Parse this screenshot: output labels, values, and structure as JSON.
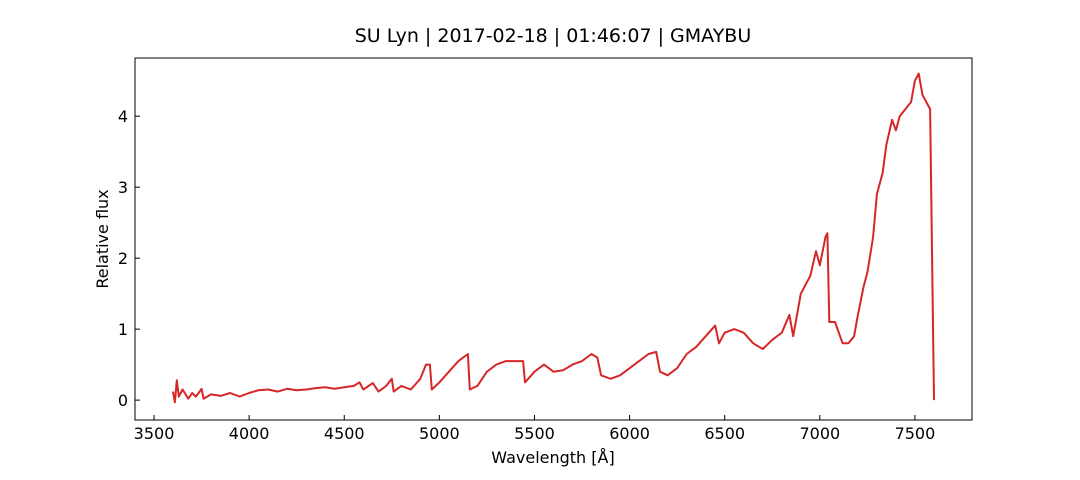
{
  "chart_data": {
    "type": "line",
    "title": "SU Lyn | 2017-02-18 | 01:46:07 | GMAYBU",
    "xlabel": "Wavelength [Å]",
    "ylabel": "Relative flux",
    "xlim": [
      3400,
      7800
    ],
    "ylim": [
      -0.28,
      4.82
    ],
    "xticks": [
      3500,
      4000,
      4500,
      5000,
      5500,
      6000,
      6500,
      7000,
      7500
    ],
    "yticks": [
      0,
      1,
      2,
      3,
      4
    ],
    "series": [
      {
        "color": "#d62728",
        "x": [
          3600,
          3610,
          3620,
          3630,
          3650,
          3680,
          3700,
          3720,
          3750,
          3760,
          3800,
          3850,
          3900,
          3950,
          4000,
          4050,
          4100,
          4150,
          4200,
          4250,
          4300,
          4350,
          4400,
          4450,
          4500,
          4550,
          4580,
          4600,
          4650,
          4680,
          4720,
          4750,
          4760,
          4800,
          4850,
          4900,
          4930,
          4950,
          4960,
          5000,
          5050,
          5100,
          5150,
          5160,
          5200,
          5250,
          5300,
          5350,
          5400,
          5440,
          5450,
          5500,
          5550,
          5600,
          5650,
          5700,
          5750,
          5800,
          5830,
          5850,
          5900,
          5950,
          6000,
          6050,
          6100,
          6140,
          6160,
          6200,
          6250,
          6300,
          6350,
          6400,
          6450,
          6470,
          6500,
          6550,
          6600,
          6650,
          6700,
          6750,
          6800,
          6840,
          6860,
          6900,
          6950,
          6980,
          7000,
          7030,
          7040,
          7050,
          7080,
          7100,
          7120,
          7150,
          7180,
          7200,
          7230,
          7250,
          7280,
          7300,
          7330,
          7350,
          7380,
          7400,
          7420,
          7450,
          7480,
          7500,
          7520,
          7540,
          7560,
          7580,
          7590,
          7600
        ],
        "values": [
          0.12,
          -0.03,
          0.28,
          0.05,
          0.15,
          0.02,
          0.1,
          0.05,
          0.16,
          0.02,
          0.08,
          0.06,
          0.1,
          0.05,
          0.1,
          0.14,
          0.15,
          0.12,
          0.16,
          0.14,
          0.15,
          0.17,
          0.18,
          0.16,
          0.18,
          0.2,
          0.25,
          0.15,
          0.24,
          0.12,
          0.2,
          0.3,
          0.12,
          0.2,
          0.15,
          0.3,
          0.5,
          0.5,
          0.15,
          0.25,
          0.4,
          0.55,
          0.65,
          0.15,
          0.2,
          0.4,
          0.5,
          0.55,
          0.55,
          0.55,
          0.25,
          0.4,
          0.5,
          0.4,
          0.42,
          0.5,
          0.55,
          0.65,
          0.6,
          0.35,
          0.3,
          0.35,
          0.45,
          0.55,
          0.65,
          0.68,
          0.4,
          0.35,
          0.45,
          0.65,
          0.75,
          0.9,
          1.05,
          0.8,
          0.95,
          1.0,
          0.95,
          0.8,
          0.72,
          0.85,
          0.95,
          1.2,
          0.9,
          1.5,
          1.75,
          2.1,
          1.9,
          2.3,
          2.35,
          1.1,
          1.1,
          0.95,
          0.8,
          0.8,
          0.9,
          1.2,
          1.6,
          1.8,
          2.3,
          2.9,
          3.2,
          3.6,
          3.95,
          3.8,
          4.0,
          4.1,
          4.2,
          4.5,
          4.6,
          4.3,
          4.2,
          4.1,
          2.0,
          0
        ]
      }
    ]
  }
}
